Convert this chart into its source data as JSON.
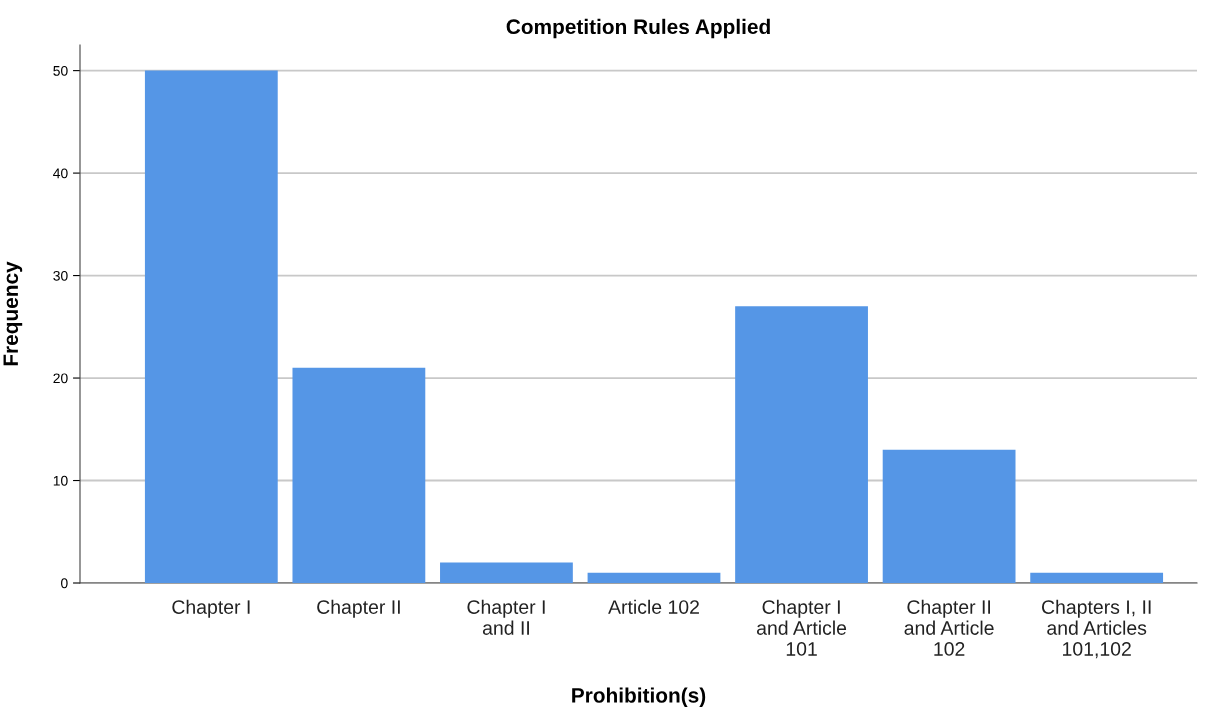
{
  "chart_data": {
    "type": "bar",
    "title": "Competition Rules Applied",
    "xlabel": "Prohibition(s)",
    "ylabel": "Frequency",
    "categories": [
      "Chapter I",
      "Chapter II",
      "Chapter I\nand II",
      "Article 102",
      "Chapter I\nand Article\n101",
      "Chapter II\nand Article\n102",
      "Chapters I, II\nand Articles\n101,102"
    ],
    "values": [
      50,
      21,
      2,
      1,
      27,
      13,
      1
    ],
    "color": "#5596e6",
    "ylim": [
      0,
      52.5
    ],
    "yticks": [
      0,
      10,
      20,
      30,
      40,
      50
    ],
    "grid": "y",
    "legend": false
  }
}
